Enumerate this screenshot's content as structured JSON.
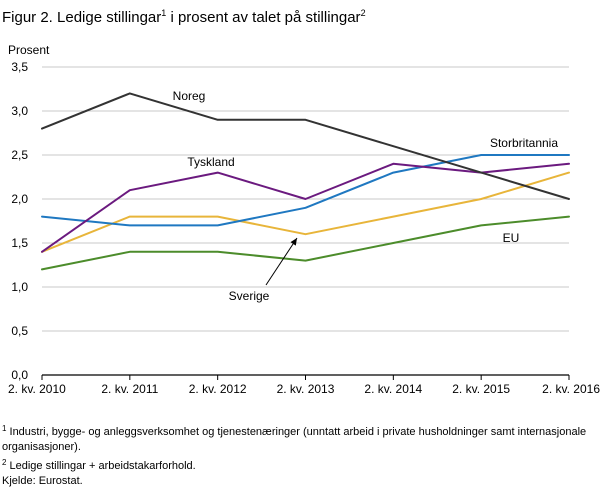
{
  "figure": {
    "title_prefix": "Figur 2. Ledige stillingar",
    "title_sup1": "1",
    "title_mid": "  i prosent av talet på stillingar",
    "title_sup2": "2"
  },
  "footnotes": {
    "note1_mark": "1",
    "note1_text": " Industri, bygge- og anleggsverksomhet og tjenestenæringer (unntatt arbeid i private husholdninger  samt internasjonale organisasjoner).",
    "note2_mark": "2",
    "note2_text": " Ledige stillingar + arbeidstakarforhold.",
    "source": "Kjelde: Eurostat."
  },
  "colors": {
    "Noreg": "#333333",
    "Storbritannia": "#1f78c1",
    "Tyskland": "#6b1a7f",
    "Sverige": "#e8b53a",
    "EU": "#4c8c2b",
    "grid": "#c8c8c8",
    "axis": "#000000"
  },
  "chart_data": {
    "type": "line",
    "ylabel": "Prosent",
    "ylim": [
      0,
      3.5
    ],
    "yticks": [
      "0,0",
      "0,5",
      "1,0",
      "1,5",
      "2,0",
      "2,5",
      "3,0",
      "3,5"
    ],
    "ytick_values": [
      0,
      0.5,
      1.0,
      1.5,
      2.0,
      2.5,
      3.0,
      3.5
    ],
    "grid": "horizontal",
    "categories": [
      "2. kv. 2010",
      "2. kv. 2011",
      "2. kv. 2012",
      "2. kv. 2013",
      "2. kv. 2014",
      "2. kv. 2015",
      "2. kv. 2016"
    ],
    "series": [
      {
        "name": "Noreg",
        "values": [
          2.8,
          3.2,
          2.9,
          2.9,
          2.6,
          2.3,
          2.0
        ]
      },
      {
        "name": "Storbritannia",
        "values": [
          1.8,
          1.7,
          1.7,
          1.9,
          2.3,
          2.5,
          2.5
        ]
      },
      {
        "name": "Tyskland",
        "values": [
          1.4,
          2.1,
          2.3,
          2.0,
          2.4,
          2.3,
          2.4
        ]
      },
      {
        "name": "Sverige",
        "values": [
          1.4,
          1.8,
          1.8,
          1.6,
          1.8,
          2.0,
          2.3
        ]
      },
      {
        "name": "EU",
        "values": [
          1.2,
          1.4,
          1.4,
          1.3,
          1.5,
          1.7,
          1.8
        ]
      }
    ]
  }
}
